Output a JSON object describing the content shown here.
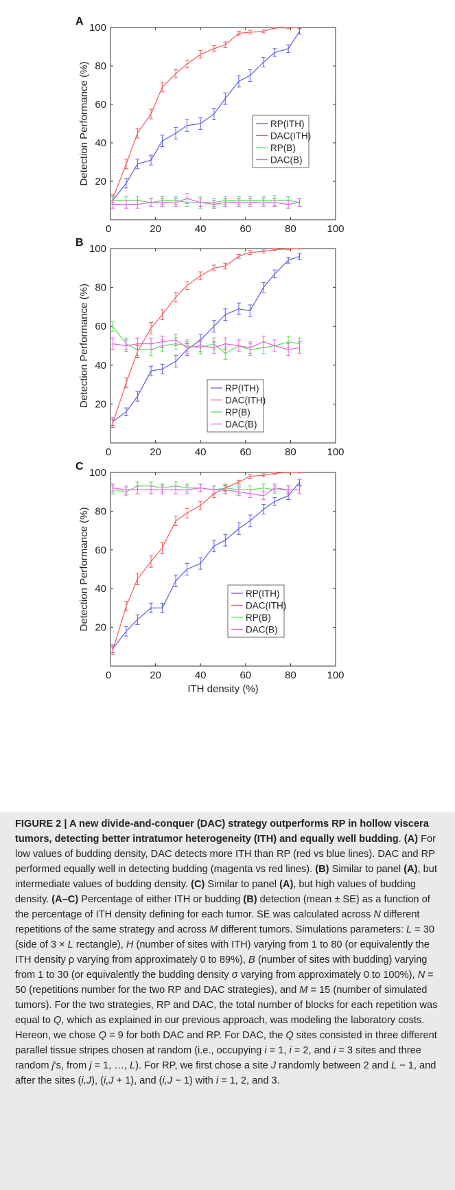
{
  "chart_data": [
    {
      "type": "line",
      "panel_label": "A",
      "ylabel": "Detection Performance (%)",
      "xlabel": "",
      "xlim": [
        0,
        100
      ],
      "ylim": [
        0,
        100
      ],
      "xticks": [
        "0",
        "20",
        "40",
        "60",
        "80",
        "100"
      ],
      "yticks": [
        "20",
        "40",
        "60",
        "80",
        "100"
      ],
      "legend_position": "right",
      "x": [
        1,
        7,
        12,
        18,
        23,
        29,
        34,
        40,
        46,
        51,
        57,
        62,
        68,
        73,
        79,
        84
      ],
      "series": [
        {
          "name": "RP(ITH)",
          "color": "#5b5be6",
          "values": [
            10,
            19,
            29,
            31,
            41,
            45,
            49,
            50,
            55,
            63,
            72,
            75,
            82,
            87,
            89,
            98
          ],
          "errors": [
            2,
            2.5,
            2.5,
            2.5,
            3,
            3,
            3,
            3,
            3,
            3,
            3,
            3,
            2.5,
            2,
            2,
            1.5
          ]
        },
        {
          "name": "DAC(ITH)",
          "color": "#ef5a5a",
          "values": [
            11,
            29,
            45,
            55,
            69,
            76,
            81,
            86,
            89,
            91,
            97,
            97.5,
            98,
            99.8,
            99.8,
            100
          ],
          "errors": [
            2,
            2.5,
            2.5,
            2.5,
            2.5,
            2,
            2,
            2,
            1.5,
            1.5,
            1,
            1,
            0.8,
            0.5,
            0.5,
            0.3
          ]
        },
        {
          "name": "RP(B)",
          "color": "#55e055",
          "values": [
            10,
            10,
            10,
            9,
            10,
            10,
            9,
            9,
            9,
            10,
            10,
            10,
            10,
            10,
            10,
            9
          ],
          "errors": [
            2,
            2,
            2,
            2,
            2,
            2,
            2,
            3,
            2,
            2,
            2,
            2,
            2,
            2.5,
            2,
            2
          ]
        },
        {
          "name": "DAC(B)",
          "color": "#e85ae8",
          "values": [
            8,
            8,
            8,
            9,
            9,
            9,
            11,
            9,
            8,
            9,
            9,
            9,
            9,
            9,
            8,
            9
          ],
          "errors": [
            2,
            2,
            2,
            2,
            2,
            2,
            2.5,
            2,
            2,
            2,
            2,
            2,
            2,
            2,
            2,
            2
          ]
        }
      ]
    },
    {
      "type": "line",
      "panel_label": "B",
      "ylabel": "Detection Performance (%)",
      "xlabel": "",
      "xlim": [
        0,
        100
      ],
      "ylim": [
        0,
        100
      ],
      "xticks": [
        "0",
        "20",
        "40",
        "60",
        "80",
        "100"
      ],
      "yticks": [
        "20",
        "40",
        "60",
        "80",
        "100"
      ],
      "legend_position": "bottom-right",
      "x": [
        1,
        7,
        12,
        18,
        23,
        29,
        34,
        40,
        46,
        51,
        57,
        62,
        68,
        73,
        79,
        84
      ],
      "series": [
        {
          "name": "RP(ITH)",
          "color": "#5b5be6",
          "values": [
            11,
            16,
            24,
            37,
            38,
            42,
            48,
            53,
            60,
            66,
            69,
            68,
            80,
            87,
            94,
            96
          ],
          "errors": [
            2,
            2,
            2.5,
            2.5,
            2.5,
            3,
            3,
            3,
            3,
            3,
            3,
            3,
            2.5,
            2,
            1.5,
            1.5
          ]
        },
        {
          "name": "DAC(ITH)",
          "color": "#ef5a5a",
          "values": [
            10,
            31,
            47,
            59,
            66,
            75,
            81,
            86,
            90,
            91,
            96,
            98,
            98.5,
            99.5,
            99.8,
            100
          ],
          "errors": [
            2,
            2.5,
            3,
            3,
            2.5,
            2.5,
            2,
            2,
            1.5,
            1.5,
            1,
            1,
            0.8,
            0.5,
            0.4,
            0.3
          ]
        },
        {
          "name": "RP(B)",
          "color": "#55e055",
          "values": [
            60,
            51,
            48,
            48,
            50,
            51,
            50,
            49,
            51,
            46,
            50,
            48,
            49,
            50,
            52,
            51
          ],
          "errors": [
            2.5,
            3,
            3,
            3,
            3,
            3,
            3,
            3,
            3,
            3,
            3,
            3,
            3,
            3,
            3,
            3
          ]
        },
        {
          "name": "DAC(B)",
          "color": "#e85ae8",
          "values": [
            51,
            50,
            51,
            51,
            52,
            53,
            49,
            50,
            49,
            51,
            50,
            49,
            52,
            50,
            48,
            49
          ],
          "errors": [
            3,
            3,
            3,
            3,
            3,
            3,
            3,
            3,
            3,
            3,
            3,
            3,
            3,
            3,
            3,
            3
          ]
        }
      ]
    },
    {
      "type": "line",
      "panel_label": "C",
      "ylabel": "Detection Performance (%)",
      "xlabel": "ITH density (%)",
      "xlim": [
        0,
        100
      ],
      "ylim": [
        0,
        100
      ],
      "xticks": [
        "0",
        "20",
        "40",
        "60",
        "80",
        "100"
      ],
      "yticks": [
        "20",
        "40",
        "60",
        "80",
        "100"
      ],
      "legend_position": "bottom-right",
      "x": [
        1,
        7,
        12,
        18,
        23,
        29,
        34,
        40,
        46,
        51,
        57,
        62,
        68,
        73,
        79,
        84
      ],
      "series": [
        {
          "name": "RP(ITH)",
          "color": "#5b5be6",
          "values": [
            9,
            18,
            24,
            30,
            30,
            44,
            50,
            53,
            62,
            65,
            71,
            75,
            81,
            85,
            88,
            95
          ],
          "errors": [
            2,
            2.5,
            2.5,
            2.5,
            2.5,
            3,
            3,
            3,
            3,
            3,
            3,
            3,
            2.5,
            2,
            2,
            1.5
          ]
        },
        {
          "name": "DAC(ITH)",
          "color": "#ef5a5a",
          "values": [
            8,
            31,
            45,
            54,
            61,
            75,
            79,
            83,
            89,
            92,
            95,
            98,
            98.5,
            99.5,
            100,
            100
          ],
          "errors": [
            2,
            2.5,
            3,
            3,
            3,
            2.5,
            2.5,
            2,
            2,
            1.5,
            1,
            1,
            0.8,
            0.5,
            0.3,
            0.3
          ]
        },
        {
          "name": "RP(B)",
          "color": "#55e055",
          "values": [
            91,
            90,
            93,
            93,
            92,
            93,
            92,
            92,
            91,
            92,
            91,
            91,
            92,
            91,
            91,
            91
          ],
          "errors": [
            2,
            2,
            2,
            2,
            2,
            2,
            2,
            2,
            2,
            2,
            2,
            2,
            2,
            2,
            2,
            2
          ]
        },
        {
          "name": "DAC(B)",
          "color": "#e85ae8",
          "values": [
            92,
            91,
            91,
            91,
            91,
            91,
            91,
            92,
            91,
            91,
            90,
            89,
            88,
            92,
            91,
            91
          ],
          "errors": [
            2,
            2,
            2,
            2,
            2,
            2,
            2,
            2,
            2,
            2,
            2,
            2,
            2,
            2,
            2,
            2
          ]
        }
      ]
    }
  ],
  "caption": {
    "figure_label": "FIGURE 2 | ",
    "title": "A new divide-and-conquer (DAC) strategy outperforms RP in hollow viscera tumors, detecting better intratumor heterogeneity (ITH) and equally well budding",
    "after_title": ". ",
    "a_label": "(A)",
    "a_text": " For low values of budding density, DAC detects more ITH than RP (red vs blue lines). DAC and RP performed equally well in detecting budding (magenta vs red lines). ",
    "b_label": "(B)",
    "b_text": " Similar to panel ",
    "b_ref": "(A)",
    "b_text2": ", but intermediate values of budding density. ",
    "c_label": "(C)",
    "c_text": " Similar to panel ",
    "c_ref": "(A)",
    "c_text2": ", but high values of budding density. ",
    "ac_label": "(A–C)",
    "ac_text": " Percentage of either ITH or budding ",
    "ac_ref": "(B)",
    "ac_text2": " detection (mean ± SE) as a function of the percentage of ITH density defining for each tumor. SE was calculated across ",
    "n_sym": "N",
    "t1": " different repetitions of the same strategy and across ",
    "m_sym": "M",
    "t2": " different tumors. Simulations parameters: ",
    "l_sym": "L",
    "t3": " = 30 (side of 3 × ",
    "l_sym2": "L",
    "t4": " rectangle), ",
    "h_sym": "H",
    "t5": " (number of sites with ITH) varying from 1 to 80 (or equivalently the ITH density ρ varying from approximately 0 to 89%), ",
    "b_sym": "B",
    "t6": " (number of sites with budding) varying from 1 to 30 (or equivalently the budding density σ varying from approximately 0 to 100%), ",
    "n_sym2": "N",
    "t7": " = 50 (repetitions number for the two RP and DAC strategies), and ",
    "m_sym2": "M",
    "t8": " = 15 (number of simulated tumors). For the two strategies, RP and DAC, the total number of blocks for each repetition was equal to ",
    "q_sym": "Q",
    "t9": ", which as explained in our previous approach, was modeling the laboratory costs. Hereon, we chose ",
    "q_sym2": "Q",
    "t10": " = 9 for both DAC and RP. For DAC, the ",
    "q_sym3": "Q",
    "t11": " sites consisted in three different parallel tissue stripes chosen at random (i.e., occupying ",
    "i_sym": "i",
    "t12": " = 1, ",
    "i_sym2": "i",
    "t13": " = 2, and ",
    "i_sym3": "i",
    "t14": " = 3 sites and three random ",
    "j_sym": "j",
    "t15": "'s, from ",
    "j_sym2": "j",
    "t16": " = 1, …, ",
    "l_sym3": "L",
    "t17": "). For RP, we first chose a site ",
    "J_sym": "J",
    "t18": " randomly between 2 and ",
    "l_sym4": "L",
    "t19": " − 1, and after the sites (",
    "iJ1": "i,J",
    "t20": "), (",
    "iJ2": "i,J",
    "t21": " + 1), and (",
    "iJ3": "i,J",
    "t22": " − 1) with ",
    "i_sym4": "i",
    "t23": " = 1, 2, and 3."
  }
}
